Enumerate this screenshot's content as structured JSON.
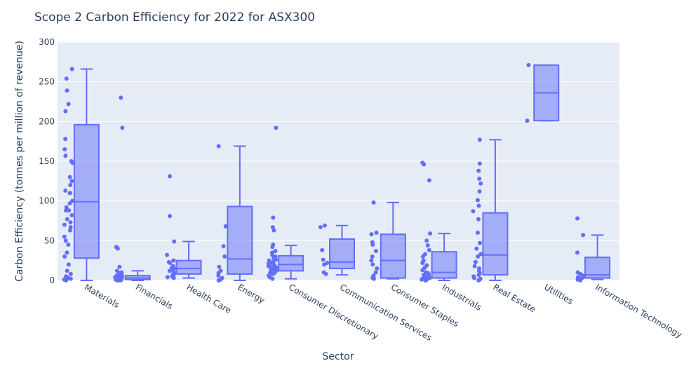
{
  "chart_data": {
    "type": "box",
    "title": "Scope 2 Carbon Efficiency for 2022 for ASX300",
    "xlabel": "Sector",
    "ylabel": "Carbon Efficiency (tonnes per million of revenue)",
    "ylim": [
      0,
      300
    ],
    "yticks": [
      0,
      50,
      100,
      150,
      200,
      250,
      300
    ],
    "grid": true,
    "colors": {
      "box": "#636efa",
      "plot_bg": "#e5ecf6",
      "grid": "#ffffff",
      "text": "#2a3f5f"
    },
    "boxes": [
      {
        "category": "Materials",
        "lower_fence": 0,
        "q1": 28,
        "median": 99,
        "q3": 196,
        "upper_fence": 266,
        "points": [
          266,
          254,
          239,
          222,
          213,
          178,
          165,
          157,
          150,
          148,
          130,
          125,
          120,
          113,
          110,
          110,
          100,
          97,
          92,
          88,
          88,
          82,
          77,
          73,
          70,
          67,
          63,
          55,
          50,
          45,
          35,
          30,
          20,
          12,
          8,
          5,
          3,
          2,
          1,
          0
        ]
      },
      {
        "category": "Financials",
        "lower_fence": 0,
        "q1": 1,
        "median": 3,
        "q3": 6,
        "upper_fence": 12,
        "points": [
          230,
          192,
          42,
          40,
          17,
          12,
          10,
          9,
          8,
          7,
          6,
          5,
          5,
          4,
          4,
          3,
          3,
          2,
          2,
          1,
          1,
          1,
          0,
          0,
          0
        ]
      },
      {
        "category": "Health Care",
        "lower_fence": 3,
        "q1": 8,
        "median": 15,
        "q3": 25,
        "upper_fence": 49,
        "points": [
          131,
          81,
          49,
          32,
          25,
          23,
          22,
          18,
          16,
          15,
          14,
          12,
          10,
          9,
          8,
          7,
          6,
          5,
          4,
          3
        ]
      },
      {
        "category": "Energy",
        "lower_fence": 0,
        "q1": 8,
        "median": 27,
        "q3": 93,
        "upper_fence": 169,
        "points": [
          169,
          68,
          43,
          30,
          17,
          12,
          9,
          6,
          3,
          1,
          0
        ]
      },
      {
        "category": "Consumer Discretionary",
        "lower_fence": 2,
        "q1": 12,
        "median": 20,
        "q3": 31,
        "upper_fence": 44,
        "points": [
          192,
          79,
          67,
          63,
          45,
          42,
          37,
          35,
          32,
          30,
          28,
          26,
          25,
          23,
          22,
          21,
          20,
          19,
          18,
          17,
          16,
          15,
          14,
          13,
          12,
          11,
          10,
          9,
          8,
          6,
          4,
          2
        ]
      },
      {
        "category": "Communication Services",
        "lower_fence": 7,
        "q1": 15,
        "median": 23,
        "q3": 52,
        "upper_fence": 69,
        "points": [
          69,
          67,
          38,
          26,
          22,
          20,
          10,
          8
        ]
      },
      {
        "category": "Consumer Staples",
        "lower_fence": 2,
        "q1": 3,
        "median": 25,
        "q3": 58,
        "upper_fence": 98,
        "points": [
          98,
          60,
          58,
          48,
          45,
          37,
          30,
          25,
          20,
          15,
          10,
          6,
          4,
          3,
          2
        ]
      },
      {
        "category": "Industrials",
        "lower_fence": 0,
        "q1": 3,
        "median": 10,
        "q3": 36,
        "upper_fence": 59,
        "points": [
          148,
          146,
          126,
          59,
          50,
          44,
          38,
          33,
          30,
          25,
          22,
          19,
          16,
          13,
          10,
          9,
          8,
          7,
          6,
          5,
          4,
          3,
          2,
          1,
          1,
          0
        ]
      },
      {
        "category": "Real Estate",
        "lower_fence": 0,
        "q1": 7,
        "median": 32,
        "q3": 85,
        "upper_fence": 177,
        "points": [
          177,
          147,
          138,
          128,
          122,
          112,
          101,
          94,
          87,
          77,
          60,
          47,
          40,
          33,
          30,
          23,
          18,
          15,
          12,
          9,
          7,
          5,
          3,
          2,
          1,
          0
        ]
      },
      {
        "category": "Utilities",
        "lower_fence": 201,
        "q1": 201,
        "median": 236,
        "q3": 271,
        "upper_fence": 271,
        "points": [
          271,
          201
        ]
      },
      {
        "category": "Information Technology",
        "lower_fence": 1,
        "q1": 3,
        "median": 7,
        "q3": 29,
        "upper_fence": 57,
        "points": [
          78,
          57,
          35,
          10,
          8,
          6,
          5,
          4,
          3,
          2,
          1,
          1,
          0
        ]
      }
    ]
  }
}
